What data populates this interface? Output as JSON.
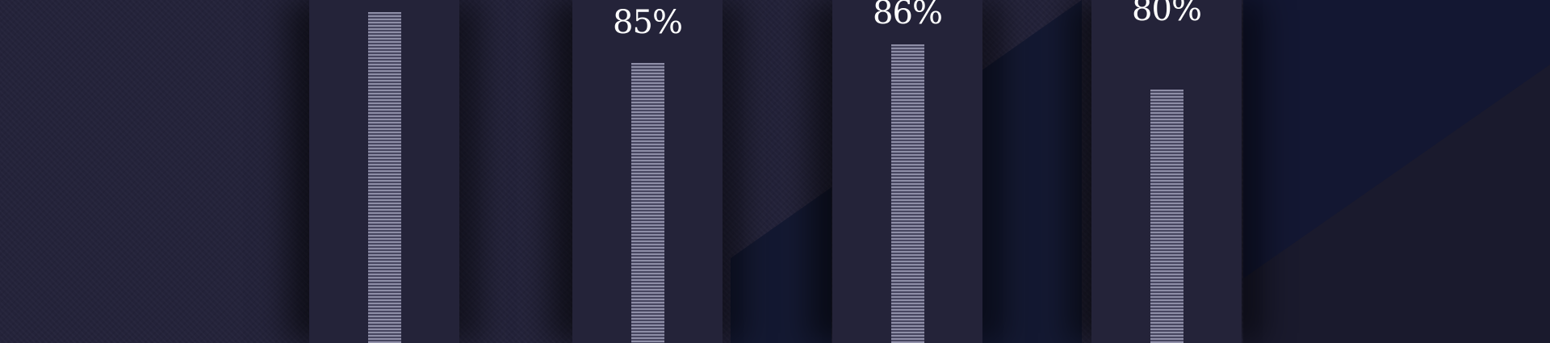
{
  "chart_data": {
    "type": "bar",
    "categories": [
      "",
      "",
      "",
      ""
    ],
    "values": [
      null,
      85,
      86,
      80
    ],
    "title": "",
    "xlabel": "",
    "ylabel": "",
    "ylim": [
      0,
      100
    ],
    "grid": false,
    "legend": "none",
    "value_labels": [
      "",
      "85%",
      "86%",
      "80%"
    ]
  },
  "colors": {
    "background": "#24233a",
    "panel": "#242339",
    "bar_light": "#9a9ab3",
    "bar_dark": "#4b4a64",
    "label": "#ffffff",
    "accent_shape": "#141932"
  }
}
